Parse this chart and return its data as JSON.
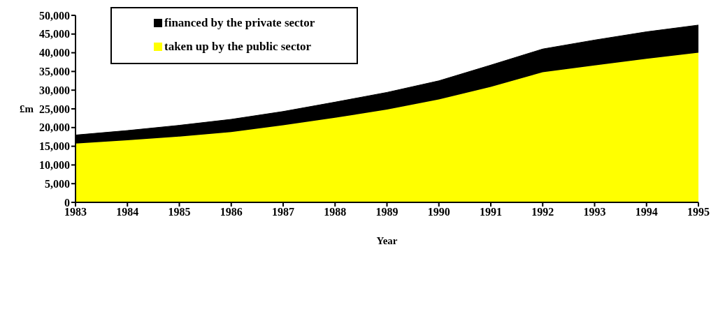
{
  "chart_data": {
    "type": "area",
    "xlabel": "Year",
    "ylabel": "£m",
    "categories": [
      "1983",
      "1984",
      "1985",
      "1986",
      "1987",
      "1988",
      "1989",
      "1990",
      "1991",
      "1992",
      "1993",
      "1994",
      "1995"
    ],
    "series": [
      {
        "name": "taken up by the public sector",
        "color": "#ffff00",
        "values": [
          15700,
          16600,
          17600,
          18800,
          20600,
          22600,
          24800,
          27500,
          30900,
          34800,
          36600,
          38400,
          40000
        ]
      },
      {
        "name": "financed by the private sector",
        "color": "#000000",
        "values": [
          2300,
          2600,
          3000,
          3400,
          3700,
          4200,
          4600,
          5000,
          5800,
          6200,
          6800,
          7200,
          7400
        ]
      }
    ],
    "stacked": true,
    "ylim": [
      0,
      50000
    ],
    "yticks": [
      0,
      {
        "value": 5000,
        "label": "5,000"
      },
      {
        "value": 10000,
        "label": "10,000"
      },
      {
        "value": 15000,
        "label": "15,000"
      },
      {
        "value": 20000,
        "label": "20,000"
      },
      {
        "value": 25000,
        "label": "25,000"
      },
      {
        "value": 30000,
        "label": "30,000"
      },
      {
        "value": 35000,
        "label": "35,000"
      },
      {
        "value": 40000,
        "label": "40,000"
      },
      {
        "value": 45000,
        "label": "45,000"
      },
      {
        "value": 50000,
        "label": "50,000"
      }
    ],
    "grid": false,
    "legend": "top left"
  }
}
